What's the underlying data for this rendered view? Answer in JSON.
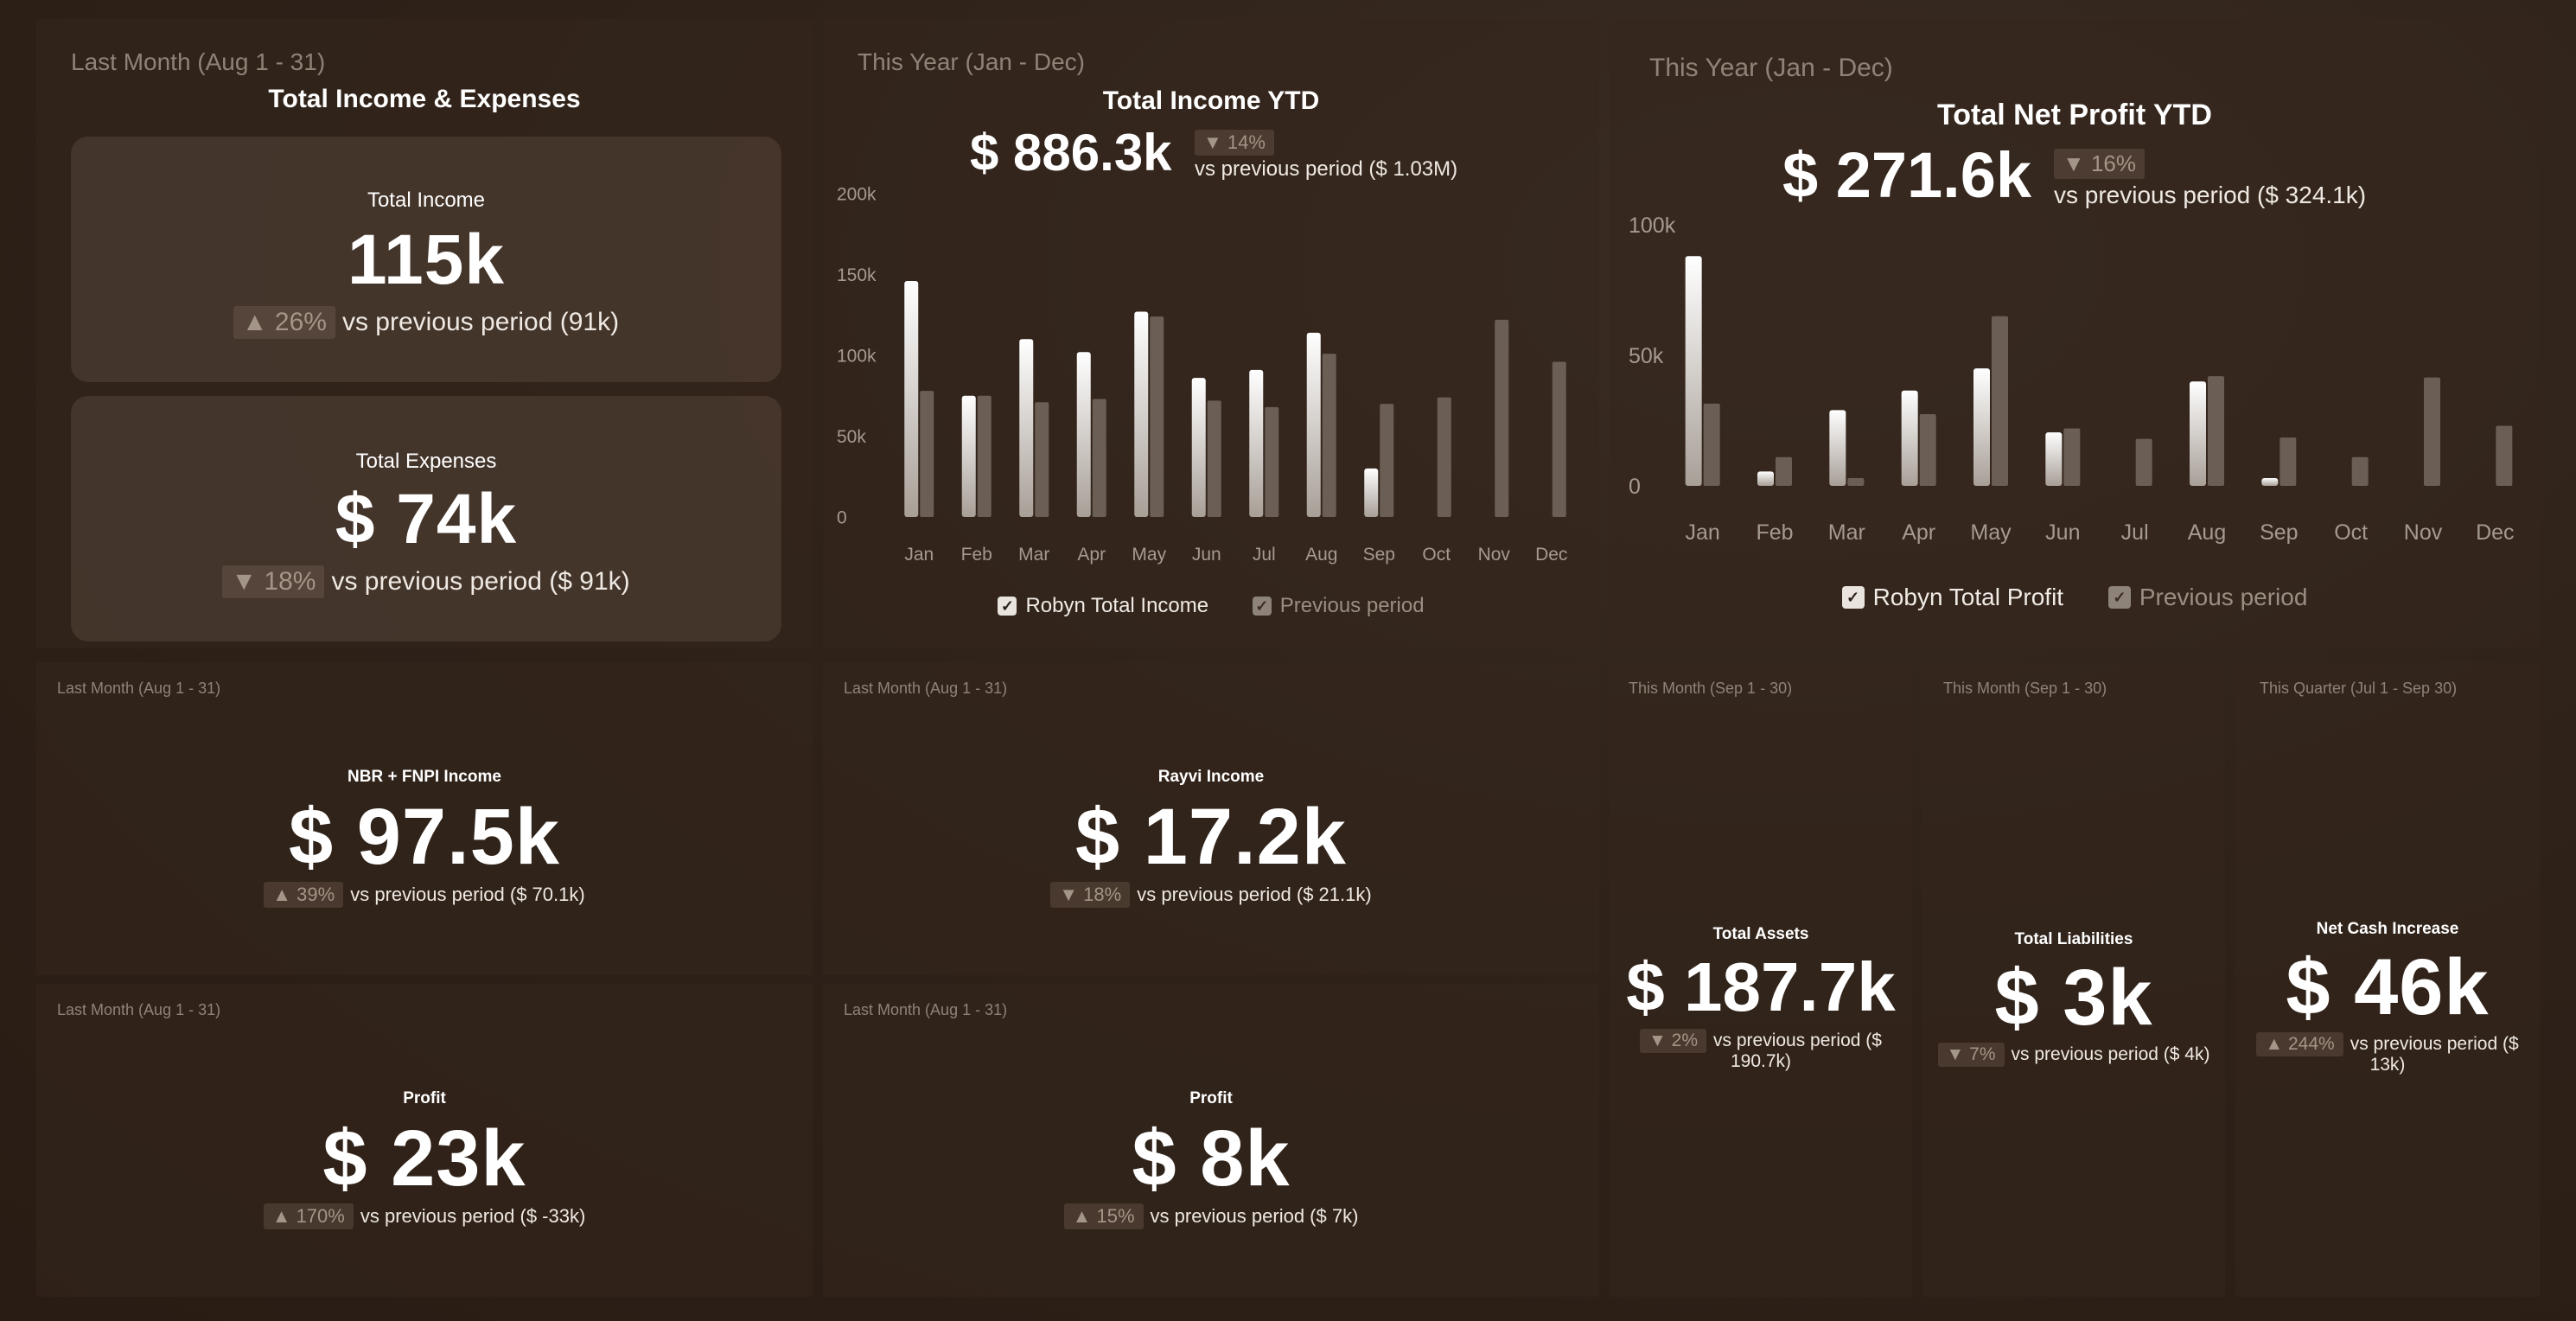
{
  "colors": {
    "current_bar": "#e9e4de",
    "previous_bar": "#6a5e55",
    "text": "#ffffff",
    "muted": "#8f8378"
  },
  "panels": {
    "income_expenses": {
      "period": "Last Month (Aug 1 - 31)",
      "title": "Total Income & Expenses",
      "income": {
        "label": "Total Income",
        "value": "115k",
        "delta_icon": "up-triangle-icon",
        "delta": "▲ 26%",
        "comparison": "vs previous period (91k)"
      },
      "expenses": {
        "label": "Total Expenses",
        "value": "$ 74k",
        "delta_icon": "down-triangle-icon",
        "delta": "▼ 18%",
        "comparison": "vs previous period ($ 91k)"
      }
    },
    "income_ytd": {
      "period": "This Year (Jan - Dec)",
      "title": "Total Income YTD",
      "value": "$ 886.3k",
      "delta": "▼ 14%",
      "comparison": "vs previous period ($ 1.03M)",
      "legend": {
        "current": "Robyn Total Income",
        "previous": "Previous period"
      }
    },
    "profit_ytd": {
      "period": "This Year (Jan - Dec)",
      "title": "Total Net Profit YTD",
      "value": "$ 271.6k",
      "delta": "▼ 16%",
      "comparison": "vs previous period ($ 324.1k)",
      "legend": {
        "current": "Robyn Total Profit",
        "previous": "Previous period"
      }
    },
    "nbr_income": {
      "period": "Last Month (Aug 1 - 31)",
      "label": "NBR + FNPI Income",
      "value": "$ 97.5k",
      "delta": "▲ 39%",
      "comparison": "vs previous period ($ 70.1k)"
    },
    "rayvi_income": {
      "period": "Last Month (Aug 1 - 31)",
      "label": "Rayvi Income",
      "value": "$ 17.2k",
      "delta": "▼ 18%",
      "comparison": "vs previous period ($ 21.1k)"
    },
    "profit_a": {
      "period": "Last Month (Aug 1 - 31)",
      "label": "Profit",
      "value": "$ 23k",
      "delta": "▲ 170%",
      "comparison": "vs previous period ($ -33k)"
    },
    "profit_b": {
      "period": "Last Month (Aug 1 - 31)",
      "label": "Profit",
      "value": "$ 8k",
      "delta": "▲ 15%",
      "comparison": "vs previous period ($ 7k)"
    },
    "assets": {
      "period": "This Month (Sep 1 - 30)",
      "label": "Total Assets",
      "value": "$ 187.7k",
      "delta": "▼ 2%",
      "comparison_line1": "vs previous period ($",
      "comparison_line2": "190.7k)"
    },
    "liabilities": {
      "period": "This Month (Sep 1 - 30)",
      "label": "Total Liabilities",
      "value": "$ 3k",
      "delta": "▼ 7%",
      "comparison": "vs previous period ($ 4k)"
    },
    "net_cash": {
      "period": "This Quarter (Jul 1 - Sep 30)",
      "label": "Net Cash Increase",
      "value": "$ 46k",
      "delta": "▲ 244%",
      "comparison_line1": "vs previous period ($",
      "comparison_line2": "13k)"
    }
  },
  "chart_data": [
    {
      "type": "bar",
      "title": "Total Income YTD",
      "categories": [
        "Jan",
        "Feb",
        "Mar",
        "Apr",
        "May",
        "Jun",
        "Jul",
        "Aug",
        "Sep",
        "Oct",
        "Nov",
        "Dec"
      ],
      "yticks": [
        "0",
        "50k",
        "100k",
        "150k",
        "200k"
      ],
      "ylim": [
        0,
        200000
      ],
      "grid": false,
      "legend": "bottom",
      "series": [
        {
          "name": "Robyn Total Income",
          "values": [
            146000,
            75000,
            110000,
            102000,
            127000,
            86000,
            91000,
            114000,
            30000,
            null,
            null,
            null
          ]
        },
        {
          "name": "Previous period",
          "values": [
            78000,
            75000,
            71000,
            73000,
            124000,
            72000,
            68000,
            101000,
            70000,
            74000,
            122000,
            96000
          ]
        }
      ]
    },
    {
      "type": "bar",
      "title": "Total Net Profit YTD",
      "categories": [
        "Jan",
        "Feb",
        "Mar",
        "Apr",
        "May",
        "Jun",
        "Jul",
        "Aug",
        "Sep",
        "Oct",
        "Nov",
        "Dec"
      ],
      "yticks": [
        "0",
        "50k",
        "100k"
      ],
      "ylim": [
        0,
        100000
      ],
      "grid": false,
      "legend": "bottom",
      "series": [
        {
          "name": "Robyn Total Profit",
          "values": [
            88000,
            5500,
            29000,
            36500,
            45000,
            20500,
            null,
            40000,
            3000,
            null,
            null,
            null
          ]
        },
        {
          "name": "Previous period",
          "values": [
            31500,
            11000,
            3000,
            27500,
            65000,
            22000,
            18000,
            42000,
            18500,
            11000,
            41500,
            23000
          ]
        }
      ]
    }
  ]
}
